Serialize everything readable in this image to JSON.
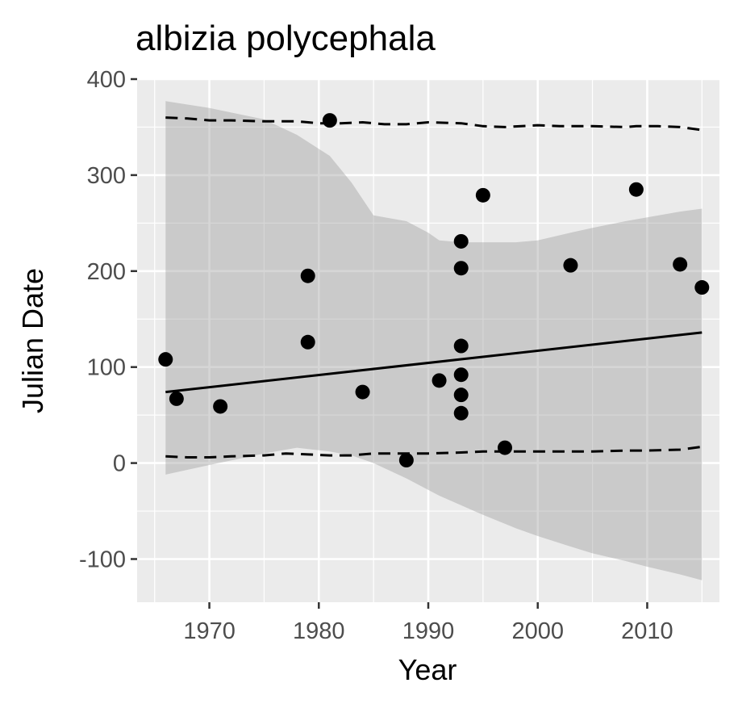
{
  "chart_data": {
    "type": "scatter",
    "title": "albizia polycephala",
    "xlabel": "Year",
    "ylabel": "Julian Date",
    "xlim": [
      1963.4,
      2016.6
    ],
    "ylim": [
      -145,
      400
    ],
    "xticks": [
      1970,
      1980,
      1990,
      2000,
      2010
    ],
    "yticks": [
      -100,
      0,
      100,
      200,
      300,
      400
    ],
    "xtick_labels": [
      "1970",
      "1980",
      "1990",
      "2000",
      "2010"
    ],
    "ytick_labels": [
      "-100",
      "0",
      "100",
      "200",
      "300",
      "400"
    ],
    "grid": true,
    "legend": "none",
    "points": [
      {
        "x": 1966,
        "y": 108
      },
      {
        "x": 1967,
        "y": 67
      },
      {
        "x": 1971,
        "y": 59
      },
      {
        "x": 1979,
        "y": 195
      },
      {
        "x": 1979,
        "y": 126
      },
      {
        "x": 1981,
        "y": 357
      },
      {
        "x": 1984,
        "y": 74
      },
      {
        "x": 1988,
        "y": 3
      },
      {
        "x": 1991,
        "y": 86
      },
      {
        "x": 1993,
        "y": 231
      },
      {
        "x": 1993,
        "y": 203
      },
      {
        "x": 1993,
        "y": 122
      },
      {
        "x": 1993,
        "y": 92
      },
      {
        "x": 1993,
        "y": 71
      },
      {
        "x": 1993,
        "y": 52
      },
      {
        "x": 1995,
        "y": 279
      },
      {
        "x": 1997,
        "y": 16
      },
      {
        "x": 2003,
        "y": 206
      },
      {
        "x": 2009,
        "y": 285
      },
      {
        "x": 2013,
        "y": 207
      },
      {
        "x": 2015,
        "y": 183
      }
    ],
    "fit_line": {
      "x": [
        1966,
        2015
      ],
      "y": [
        74,
        136
      ]
    },
    "confidence_band": {
      "x": [
        1966,
        1970,
        1975,
        1978,
        1981,
        1983,
        1985,
        1988,
        1990,
        1991,
        1993,
        1995,
        1998,
        2000,
        2003,
        2005,
        2008,
        2010,
        2013,
        2015
      ],
      "upper": [
        377,
        370,
        358,
        342,
        320,
        292,
        258,
        252,
        240,
        232,
        230,
        230,
        230,
        232,
        240,
        245,
        252,
        256,
        262,
        265
      ],
      "lower": [
        -12,
        -2,
        10,
        16,
        12,
        8,
        0,
        -16,
        -28,
        -34,
        -44,
        -54,
        -68,
        -76,
        -87,
        -94,
        -102,
        -108,
        -116,
        -122
      ]
    },
    "upper_dashed": {
      "x": [
        1966,
        1968,
        1970,
        1972,
        1975,
        1978,
        1980,
        1982,
        1984,
        1986,
        1988,
        1990,
        1993,
        1995,
        1997,
        2000,
        2002,
        2003,
        2005,
        2008,
        2009,
        2011,
        2013,
        2015
      ],
      "y": [
        360,
        359,
        357,
        357,
        356,
        356,
        354,
        354,
        355,
        353,
        353,
        355,
        354,
        351,
        350,
        352,
        351,
        351,
        351,
        350,
        351,
        351,
        350,
        347
      ]
    },
    "lower_dashed": {
      "x": [
        1966,
        1968,
        1970,
        1972,
        1975,
        1977,
        1979,
        1981,
        1983,
        1985,
        1988,
        1990,
        1993,
        1995,
        1997,
        2000,
        2002,
        2005,
        2008,
        2010,
        2013,
        2015
      ],
      "y": [
        7,
        6,
        6,
        7,
        8,
        10,
        9,
        8,
        8,
        10,
        10,
        10,
        11,
        12,
        12,
        12,
        12,
        12,
        13,
        13,
        14,
        17
      ]
    }
  }
}
